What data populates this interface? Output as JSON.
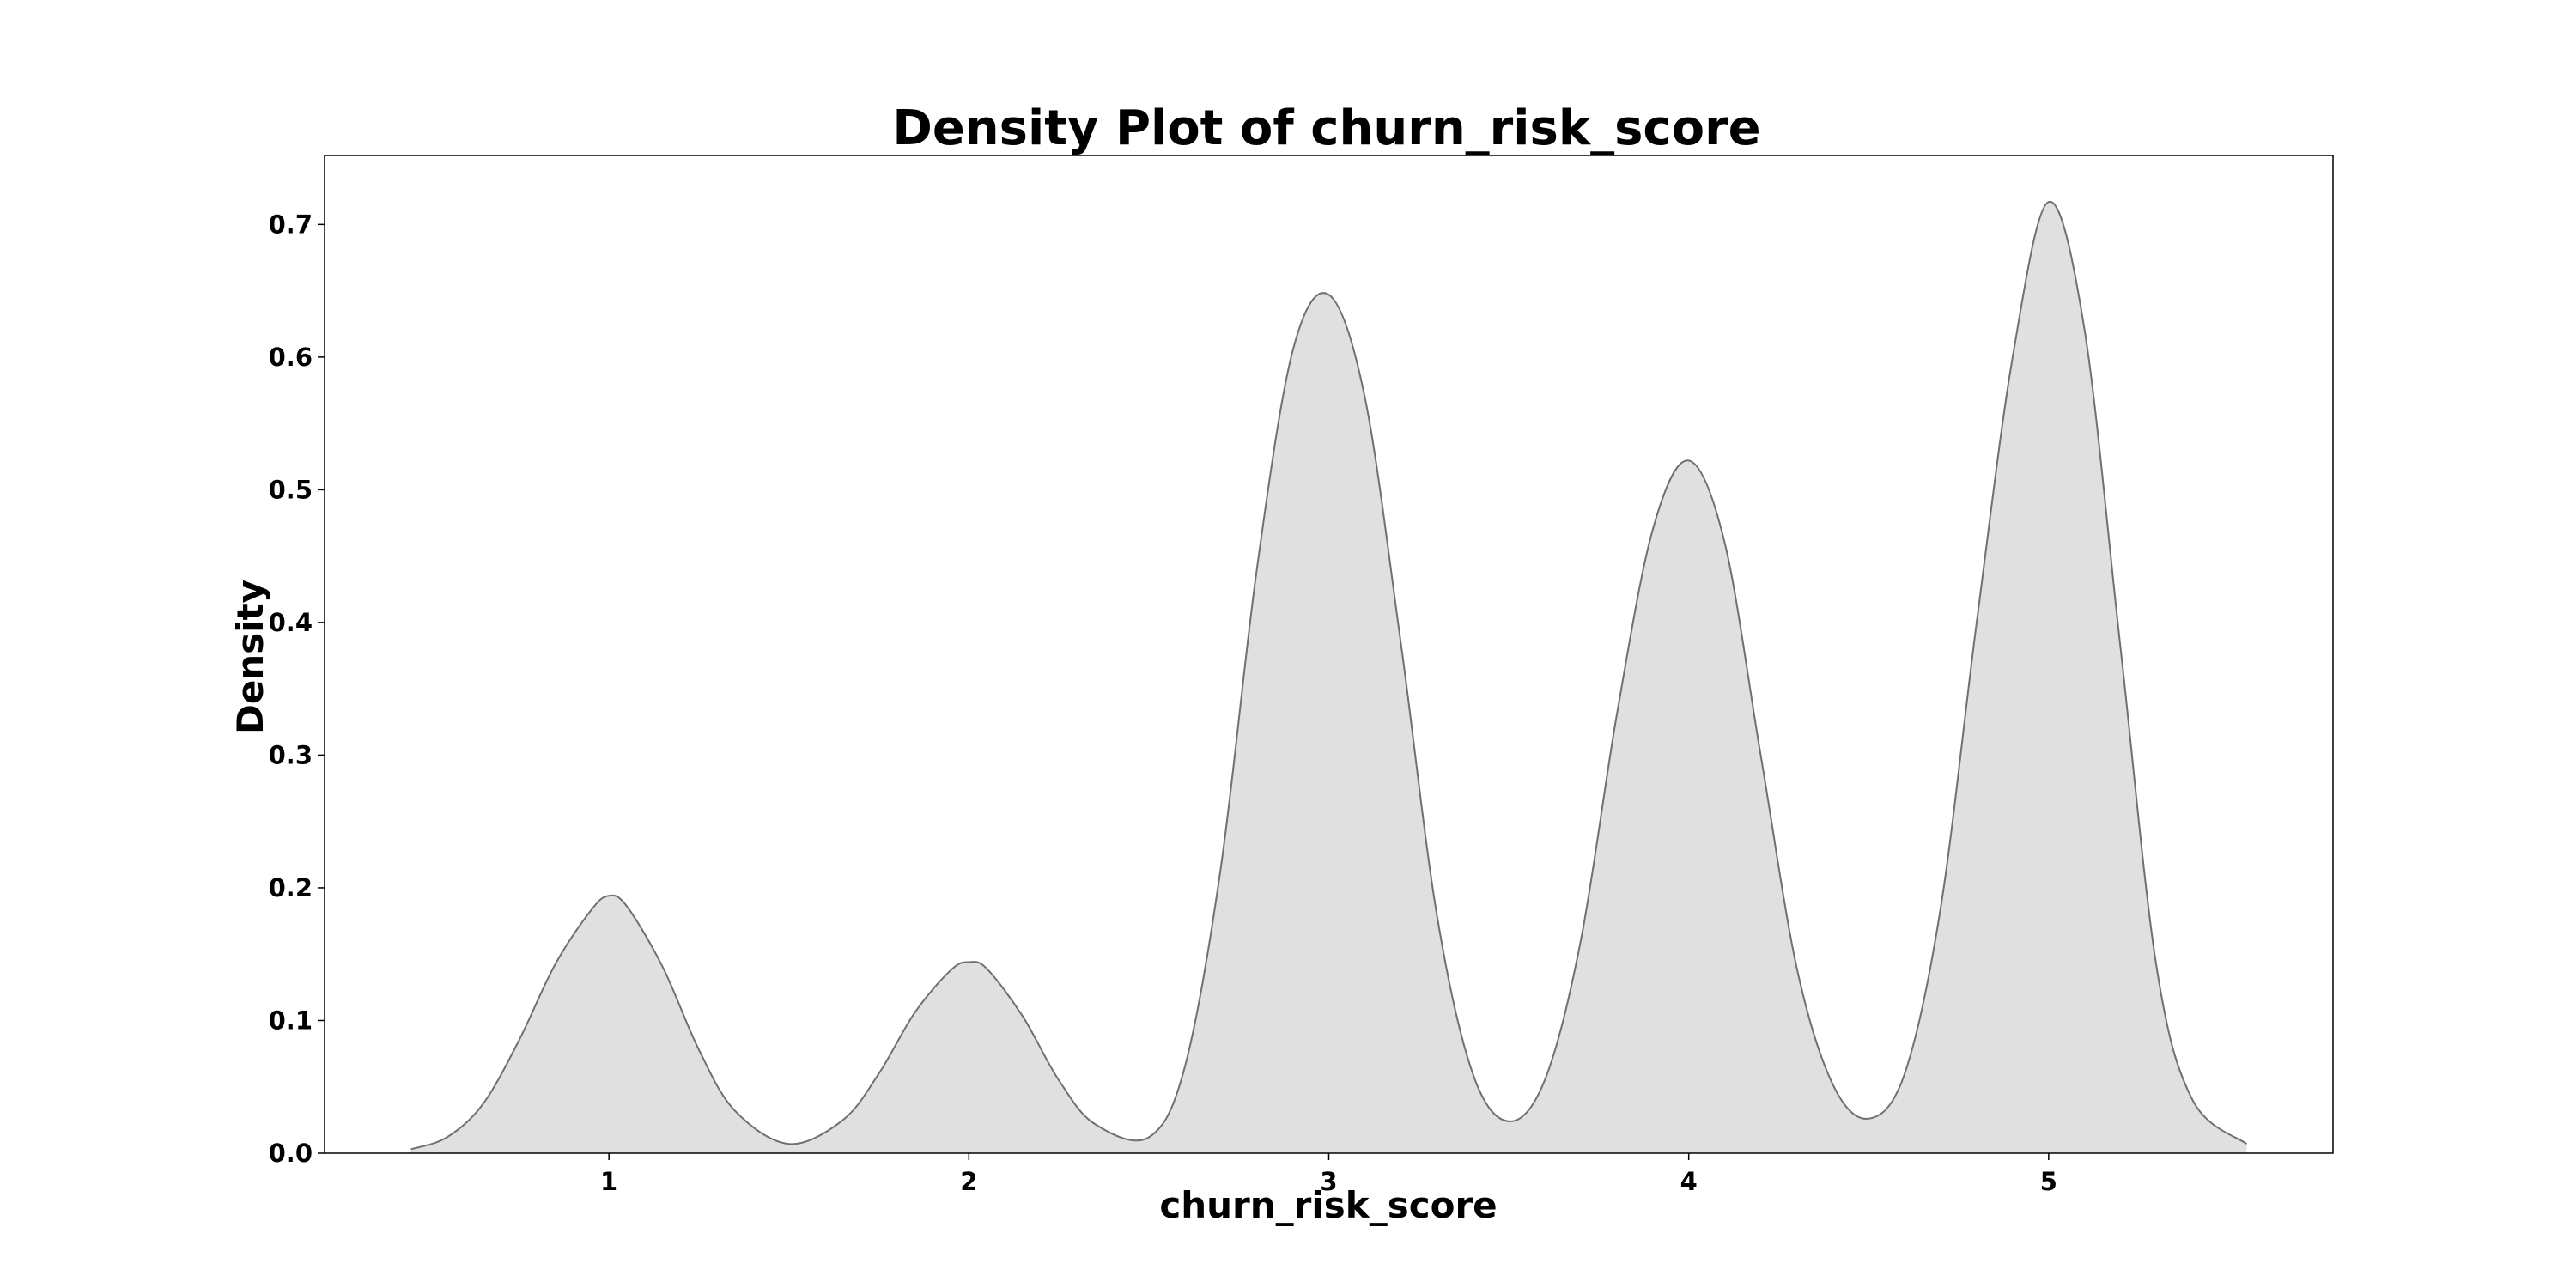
{
  "chart_data": {
    "type": "area",
    "title": "Density Plot of churn_risk_score",
    "xlabel": "churn_risk_score",
    "ylabel": "Density",
    "xlim": [
      0.21,
      5.79
    ],
    "ylim": [
      0.0,
      0.752
    ],
    "x_ticks": [
      "1",
      "2",
      "3",
      "4",
      "5"
    ],
    "y_ticks": [
      "0.0",
      "0.1",
      "0.2",
      "0.3",
      "0.4",
      "0.5",
      "0.6",
      "0.7"
    ],
    "grid": false,
    "legend": "none",
    "fill_color": "#e0e0e0",
    "line_color": "#707070",
    "series": [
      {
        "x": [
          0.45,
          0.55,
          0.65,
          0.75,
          0.85,
          0.95,
          1.0,
          1.05,
          1.15,
          1.25,
          1.35,
          1.5,
          1.65,
          1.75,
          1.85,
          1.95,
          2.0,
          2.05,
          2.15,
          2.25,
          2.35,
          2.5,
          2.6,
          2.7,
          2.8,
          2.9,
          3.0,
          3.1,
          3.2,
          3.3,
          3.4,
          3.5,
          3.6,
          3.7,
          3.8,
          3.9,
          4.0,
          4.1,
          4.2,
          4.3,
          4.4,
          4.5,
          4.6,
          4.7,
          4.8,
          4.9,
          5.0,
          5.1,
          5.2,
          5.3,
          5.4,
          5.55
        ],
        "y": [
          0.003,
          0.012,
          0.037,
          0.085,
          0.142,
          0.183,
          0.194,
          0.186,
          0.14,
          0.078,
          0.032,
          0.007,
          0.025,
          0.06,
          0.106,
          0.138,
          0.144,
          0.139,
          0.103,
          0.055,
          0.022,
          0.012,
          0.065,
          0.215,
          0.44,
          0.605,
          0.647,
          0.57,
          0.385,
          0.18,
          0.06,
          0.024,
          0.055,
          0.16,
          0.33,
          0.47,
          0.522,
          0.46,
          0.3,
          0.14,
          0.052,
          0.026,
          0.06,
          0.185,
          0.4,
          0.6,
          0.717,
          0.62,
          0.38,
          0.14,
          0.04,
          0.007
        ]
      }
    ]
  }
}
